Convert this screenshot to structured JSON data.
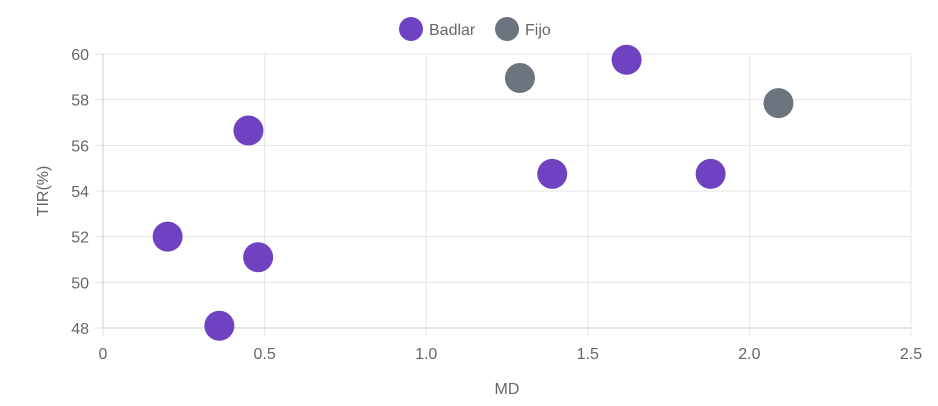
{
  "chart_data": {
    "type": "scatter",
    "xlabel": "MD",
    "ylabel": "TIR(%)",
    "xlim": [
      0,
      2.5
    ],
    "ylim": [
      48,
      60
    ],
    "x_ticks": [
      "0",
      "0.5",
      "1.0",
      "1.5",
      "2.0",
      "2.5"
    ],
    "y_ticks": [
      "48",
      "50",
      "52",
      "54",
      "56",
      "58",
      "60"
    ],
    "grid": true,
    "legend_position": "top-center",
    "series": [
      {
        "name": "Badlar",
        "color": "#6f42c1",
        "points": [
          {
            "x": 0.2,
            "y": 52.0
          },
          {
            "x": 0.36,
            "y": 48.1
          },
          {
            "x": 0.45,
            "y": 56.65
          },
          {
            "x": 0.48,
            "y": 51.1
          },
          {
            "x": 1.39,
            "y": 54.75
          },
          {
            "x": 1.62,
            "y": 59.75
          },
          {
            "x": 1.88,
            "y": 54.75
          }
        ]
      },
      {
        "name": "Fijo",
        "color": "#6c757d",
        "points": [
          {
            "x": 1.29,
            "y": 58.95
          },
          {
            "x": 2.09,
            "y": 57.85
          }
        ]
      }
    ]
  }
}
